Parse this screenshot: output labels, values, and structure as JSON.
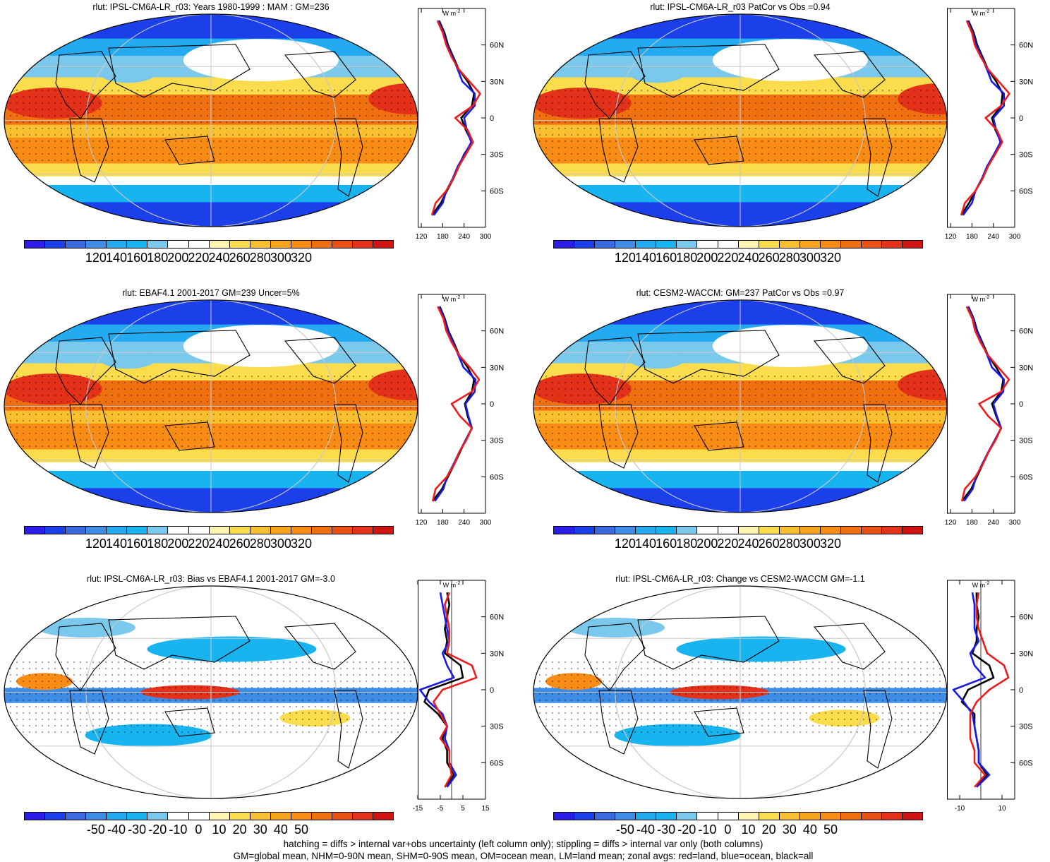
{
  "figure": {
    "footer_line1": "hatching = diffs > internal var+obs uncertainty (left column only); stippling = diffs > internal var only (both columns)",
    "footer_line2": "GM=global mean, NHM=0-90N mean, SHM=0-90S mean, OM=ocean mean, LM=land mean; zonal avgs: red=land, blue=ocean, black=all",
    "zonal_unit": "W m",
    "zonal_unit_exp": "-2",
    "lat_labels": [
      "60N",
      "30N",
      "0",
      "30S",
      "60S"
    ],
    "colors": {
      "abs_scale": [
        "#2c1de8",
        "#1b3fe8",
        "#3a6ae0",
        "#3d8ce6",
        "#24aaf0",
        "#18b4f0",
        "#7ac8ec",
        "#ffffff",
        "#ffffff",
        "#fff4b0",
        "#fadc4c",
        "#f8c030",
        "#f8a41c",
        "#f88c14",
        "#f07010",
        "#e85014",
        "#e4321a",
        "#d01414"
      ],
      "anom_scale": [
        "#2c1de8",
        "#1b3fe8",
        "#3a6ae0",
        "#3d8ce6",
        "#24aaf0",
        "#18b4f0",
        "#7ac8ec",
        "#ffffff",
        "#ffffff",
        "#fff4b0",
        "#fadc4c",
        "#f8c030",
        "#f8a41c",
        "#f88c14",
        "#f07010",
        "#e85014",
        "#e4321a",
        "#d01414"
      ],
      "land_line": "#ee1c1c",
      "ocean_line": "#1a1ae6",
      "all_line": "#000000"
    }
  },
  "panels": [
    {
      "title": "rlut: IPSL-CM6A-LR_r03: Years 1980-1999 : MAM : GM=236",
      "colorbar_labels": [
        "120",
        "140",
        "160",
        "180",
        "200",
        "220",
        "240",
        "260",
        "280",
        "300",
        "320"
      ],
      "zonal_xticks": [
        "120",
        "180",
        "240",
        "300"
      ],
      "kind": "abs"
    },
    {
      "title": "rlut: IPSL-CM6A-LR_r03 PatCor vs Obs =0.94",
      "colorbar_labels": [
        "120",
        "140",
        "160",
        "180",
        "200",
        "220",
        "240",
        "260",
        "280",
        "300",
        "320"
      ],
      "zonal_xticks": [
        "120",
        "180",
        "240",
        "300"
      ],
      "kind": "abs"
    },
    {
      "title": "rlut: EBAF4.1 2001-2017 GM=239 Uncer=5%",
      "colorbar_labels": [
        "120",
        "140",
        "160",
        "180",
        "200",
        "220",
        "240",
        "260",
        "280",
        "300",
        "320"
      ],
      "zonal_xticks": [
        "120",
        "180",
        "240",
        "300"
      ],
      "kind": "abs"
    },
    {
      "title": "rlut: CESM2-WACCM: GM=237 PatCor vs Obs =0.97",
      "colorbar_labels": [
        "120",
        "140",
        "160",
        "180",
        "200",
        "220",
        "240",
        "260",
        "280",
        "300",
        "320"
      ],
      "zonal_xticks": [
        "120",
        "180",
        "240",
        "300"
      ],
      "kind": "abs"
    },
    {
      "title": "rlut: IPSL-CM6A-LR_r03: Bias vs EBAF4.1 2001-2017 GM=-3.0",
      "colorbar_labels": [
        "-50",
        "-40",
        "-30",
        "-20",
        "-10",
        "0",
        "10",
        "20",
        "30",
        "40",
        "50"
      ],
      "zonal_xticks": [
        "-15",
        "-5",
        "5",
        "15"
      ],
      "kind": "anom"
    },
    {
      "title": "rlut: IPSL-CM6A-LR_r03: Change vs CESM2-WACCM GM=-1.1",
      "colorbar_labels": [
        "-50",
        "-40",
        "-30",
        "-20",
        "-10",
        "0",
        "10",
        "20",
        "30",
        "40",
        "50"
      ],
      "zonal_xticks": [
        "-10",
        "10"
      ],
      "kind": "anom"
    }
  ],
  "chart_data": [
    {
      "type": "line",
      "title": "rlut: IPSL-CM6A-LR_r03: Years 1980-1999 : MAM : GM=236",
      "xlabel": "W m-2",
      "xlim": [
        110,
        300
      ],
      "lat": [
        -80,
        -70,
        -60,
        -50,
        -40,
        -30,
        -20,
        -10,
        0,
        10,
        20,
        30,
        40,
        50,
        60,
        70,
        80
      ],
      "series": [
        {
          "values": [
            150,
            175,
            192,
            210,
            225,
            240,
            262,
            245,
            232,
            262,
            268,
            250,
            225,
            210,
            195,
            185,
            170
          ]
        },
        {
          "values": [
            155,
            180,
            190,
            208,
            222,
            242,
            260,
            248,
            240,
            270,
            270,
            235,
            222,
            208,
            192,
            182,
            168
          ]
        },
        {
          "values": [
            150,
            160,
            190,
            210,
            225,
            245,
            265,
            250,
            215,
            265,
            285,
            255,
            225,
            205,
            190,
            180,
            165
          ]
        }
      ]
    },
    {
      "type": "line",
      "title": "rlut: IPSL-CM6A-LR_r03 PatCor vs Obs =0.94",
      "xlabel": "W m-2",
      "xlim": [
        110,
        300
      ],
      "lat": [
        -80,
        -70,
        -60,
        -50,
        -40,
        -30,
        -20,
        -10,
        0,
        10,
        20,
        30,
        40,
        50,
        60,
        70,
        80
      ],
      "series": [
        {
          "values": [
            150,
            172,
            190,
            208,
            224,
            242,
            262,
            246,
            236,
            262,
            266,
            248,
            225,
            210,
            195,
            185,
            170
          ]
        },
        {
          "values": [
            155,
            180,
            190,
            208,
            222,
            242,
            260,
            248,
            240,
            270,
            270,
            235,
            222,
            208,
            192,
            182,
            168
          ]
        },
        {
          "values": [
            150,
            160,
            190,
            210,
            225,
            245,
            265,
            250,
            218,
            262,
            285,
            255,
            225,
            205,
            188,
            180,
            165
          ]
        }
      ]
    },
    {
      "type": "line",
      "title": "rlut: EBAF4.1 2001-2017 GM=239 Uncer=5%",
      "xlabel": "W m-2",
      "xlim": [
        110,
        300
      ],
      "lat": [
        -80,
        -70,
        -60,
        -50,
        -40,
        -30,
        -20,
        -10,
        0,
        10,
        20,
        30,
        40,
        50,
        60,
        70,
        80
      ],
      "series": [
        {
          "values": [
            152,
            178,
            195,
            212,
            228,
            244,
            262,
            250,
            242,
            262,
            268,
            250,
            226,
            212,
            196,
            186,
            172
          ]
        },
        {
          "values": [
            158,
            182,
            192,
            210,
            226,
            244,
            262,
            252,
            244,
            270,
            272,
            238,
            224,
            210,
            194,
            184,
            170
          ]
        },
        {
          "values": [
            152,
            160,
            192,
            212,
            226,
            246,
            262,
            228,
            205,
            262,
            282,
            256,
            226,
            206,
            190,
            182,
            166
          ]
        }
      ]
    },
    {
      "type": "line",
      "title": "rlut: CESM2-WACCM: GM=237 PatCor vs Obs =0.97",
      "xlabel": "W m-2",
      "xlim": [
        110,
        300
      ],
      "lat": [
        -80,
        -70,
        -60,
        -50,
        -40,
        -30,
        -20,
        -10,
        0,
        10,
        20,
        30,
        40,
        50,
        60,
        70,
        80
      ],
      "series": [
        {
          "values": [
            152,
            178,
            194,
            210,
            226,
            244,
            262,
            248,
            236,
            262,
            268,
            248,
            225,
            210,
            195,
            185,
            170
          ]
        },
        {
          "values": [
            158,
            182,
            192,
            208,
            225,
            244,
            262,
            250,
            240,
            268,
            270,
            236,
            223,
            208,
            193,
            183,
            169
          ]
        },
        {
          "values": [
            152,
            160,
            190,
            210,
            226,
            246,
            262,
            225,
            200,
            262,
            284,
            254,
            225,
            205,
            189,
            181,
            165
          ]
        }
      ]
    },
    {
      "type": "line",
      "title": "rlut: IPSL-CM6A-LR_r03: Bias vs EBAF4.1 2001-2017 GM=-3.0",
      "xlabel": "W m-2",
      "xlim": [
        -15,
        15
      ],
      "lat": [
        -80,
        -70,
        -60,
        -50,
        -40,
        -30,
        -20,
        -10,
        0,
        10,
        20,
        30,
        40,
        50,
        60,
        70,
        80
      ],
      "series": [
        {
          "values": [
            -3,
            1,
            -2,
            -2,
            -4,
            -2,
            -6,
            -12,
            -10,
            5,
            4,
            -3,
            -2,
            -3,
            -2,
            -1,
            -2
          ]
        },
        {
          "values": [
            -2,
            2,
            -1,
            -1,
            -3,
            -2,
            -4,
            -10,
            -14,
            1,
            -2,
            -4,
            -1,
            -2,
            -3,
            -4,
            -5
          ]
        },
        {
          "values": [
            -3,
            0,
            -1,
            -1,
            -5,
            -2,
            -5,
            -8,
            -4,
            11,
            9,
            -2,
            -1,
            -1,
            -2,
            -3,
            -1
          ]
        }
      ]
    },
    {
      "type": "line",
      "title": "rlut: IPSL-CM6A-LR_r03: Change vs CESM2-WACCM GM=-1.1",
      "xlabel": "W m-2",
      "xlim": [
        -16,
        16
      ],
      "lat": [
        -80,
        -70,
        -60,
        -50,
        -40,
        -30,
        -20,
        -10,
        0,
        10,
        20,
        30,
        40,
        50,
        60,
        70,
        80
      ],
      "series": [
        {
          "values": [
            -2,
            3,
            -1,
            -1,
            -2,
            -3,
            -3,
            -9,
            -6,
            6,
            4,
            -4,
            -2,
            -2,
            -1,
            -2,
            -2
          ]
        },
        {
          "values": [
            -2,
            4,
            -1,
            -1,
            -2,
            -3,
            -4,
            -8,
            -13,
            2,
            -3,
            -5,
            -1,
            -3,
            -3,
            -3,
            -4
          ]
        },
        {
          "values": [
            -3,
            2,
            -3,
            -3,
            -5,
            -5,
            -5,
            -2,
            4,
            13,
            11,
            3,
            1,
            -1,
            -2,
            -2,
            -1
          ]
        }
      ]
    }
  ]
}
